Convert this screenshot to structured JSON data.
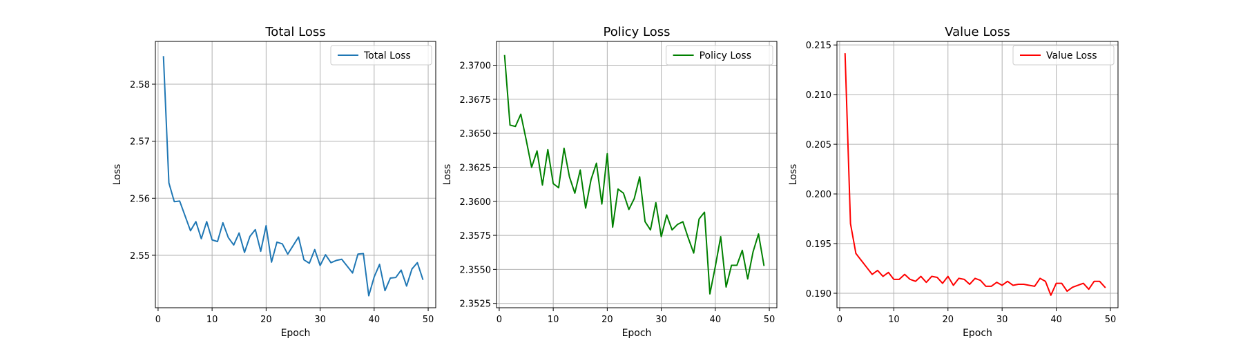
{
  "chart_data": [
    {
      "type": "line",
      "title": "Total Loss",
      "xlabel": "Epoch",
      "ylabel": "Loss",
      "xlim": [
        -0.5,
        51.4
      ],
      "ylim": [
        2.5408,
        2.5875
      ],
      "xticks": [
        0,
        10,
        20,
        30,
        40,
        50
      ],
      "yticks": [
        2.55,
        2.56,
        2.57,
        2.58
      ],
      "ytick_labels": [
        "2.55",
        "2.56",
        "2.57",
        "2.58"
      ],
      "grid": true,
      "legend": "top-right",
      "series": [
        {
          "name": "Total Loss",
          "color": "#1f77b4",
          "x": [
            1,
            2,
            3,
            4,
            5,
            6,
            7,
            8,
            9,
            10,
            11,
            12,
            13,
            14,
            15,
            16,
            17,
            18,
            19,
            20,
            21,
            22,
            23,
            24,
            25,
            26,
            27,
            28,
            29,
            30,
            31,
            32,
            33,
            34,
            35,
            36,
            37,
            38,
            39,
            40,
            41,
            42,
            43,
            44,
            45,
            46,
            47,
            48,
            49
          ],
          "values": [
            2.5848,
            2.5627,
            2.5594,
            2.5595,
            2.5569,
            2.5543,
            2.5559,
            2.5529,
            2.5559,
            2.5527,
            2.5524,
            2.5557,
            2.5531,
            2.5518,
            2.5539,
            2.5505,
            2.5533,
            2.5545,
            2.5507,
            2.5552,
            2.5488,
            2.5523,
            2.552,
            2.5502,
            2.5517,
            2.5532,
            2.5492,
            2.5486,
            2.551,
            2.5482,
            2.5501,
            2.5487,
            2.5491,
            2.5493,
            2.5481,
            2.5469,
            2.5502,
            2.5503,
            2.5429,
            2.5462,
            2.5484,
            2.5438,
            2.546,
            2.5461,
            2.5474,
            2.5446,
            2.5476,
            2.5487,
            2.5458
          ]
        }
      ]
    },
    {
      "type": "line",
      "title": "Policy Loss",
      "xlabel": "Epoch",
      "ylabel": "Loss",
      "xlim": [
        -0.5,
        51.4
      ],
      "ylim": [
        2.35218,
        2.37175
      ],
      "xticks": [
        0,
        10,
        20,
        30,
        40,
        50
      ],
      "yticks": [
        2.3525,
        2.355,
        2.3575,
        2.36,
        2.3625,
        2.365,
        2.3675,
        2.37
      ],
      "ytick_labels": [
        "2.3525",
        "2.3550",
        "2.3575",
        "2.3600",
        "2.3625",
        "2.3650",
        "2.3675",
        "2.3700"
      ],
      "grid": true,
      "legend": "top-right",
      "series": [
        {
          "name": "Policy Loss",
          "color": "#008000",
          "x": [
            1,
            2,
            3,
            4,
            5,
            6,
            7,
            8,
            9,
            10,
            11,
            12,
            13,
            14,
            15,
            16,
            17,
            18,
            19,
            20,
            21,
            22,
            23,
            24,
            25,
            26,
            27,
            28,
            29,
            30,
            31,
            32,
            33,
            34,
            35,
            36,
            37,
            38,
            39,
            40,
            41,
            42,
            43,
            44,
            45,
            46,
            47,
            48,
            49
          ],
          "values": [
            2.3707,
            2.3656,
            2.3655,
            2.3664,
            2.3645,
            2.3625,
            2.3637,
            2.3612,
            2.3638,
            2.3613,
            2.361,
            2.3639,
            2.3618,
            2.3606,
            2.3623,
            2.3595,
            2.3616,
            2.3628,
            2.3598,
            2.3635,
            2.3581,
            2.3609,
            2.3606,
            2.3594,
            2.3602,
            2.3618,
            2.3585,
            2.3579,
            2.3599,
            2.3574,
            2.359,
            2.3579,
            2.3583,
            2.3585,
            2.3573,
            2.3562,
            2.3587,
            2.3592,
            2.3532,
            2.3552,
            2.3574,
            2.3537,
            2.3553,
            2.3553,
            2.3564,
            2.3543,
            2.3563,
            2.3576,
            2.3553
          ]
        }
      ]
    },
    {
      "type": "line",
      "title": "Value Loss",
      "xlabel": "Epoch",
      "ylabel": "Loss",
      "xlim": [
        -0.5,
        51.4
      ],
      "ylim": [
        0.18854,
        0.21536
      ],
      "xticks": [
        0,
        10,
        20,
        30,
        40,
        50
      ],
      "yticks": [
        0.19,
        0.195,
        0.2,
        0.205,
        0.21,
        0.215
      ],
      "ytick_labels": [
        "0.190",
        "0.195",
        "0.200",
        "0.205",
        "0.210",
        "0.215"
      ],
      "grid": true,
      "legend": "top-right",
      "series": [
        {
          "name": "Value Loss",
          "color": "#ff0000",
          "x": [
            1,
            2,
            3,
            4,
            5,
            6,
            7,
            8,
            9,
            10,
            11,
            12,
            13,
            14,
            15,
            16,
            17,
            18,
            19,
            20,
            21,
            22,
            23,
            24,
            25,
            26,
            27,
            28,
            29,
            30,
            31,
            32,
            33,
            34,
            35,
            36,
            37,
            38,
            39,
            40,
            41,
            42,
            43,
            44,
            45,
            46,
            47,
            48,
            49
          ],
          "values": [
            0.2141,
            0.197,
            0.194,
            0.1933,
            0.1926,
            0.1919,
            0.1923,
            0.1917,
            0.1921,
            0.1914,
            0.1914,
            0.1919,
            0.1914,
            0.1912,
            0.1917,
            0.1911,
            0.1917,
            0.1916,
            0.191,
            0.1917,
            0.1908,
            0.1915,
            0.1914,
            0.1909,
            0.1915,
            0.1913,
            0.1907,
            0.1907,
            0.1911,
            0.1908,
            0.1912,
            0.1908,
            0.1909,
            0.1909,
            0.1908,
            0.1907,
            0.1915,
            0.1912,
            0.1898,
            0.191,
            0.191,
            0.1902,
            0.1906,
            0.1908,
            0.191,
            0.1904,
            0.1912,
            0.1912,
            0.1906
          ]
        }
      ]
    }
  ]
}
